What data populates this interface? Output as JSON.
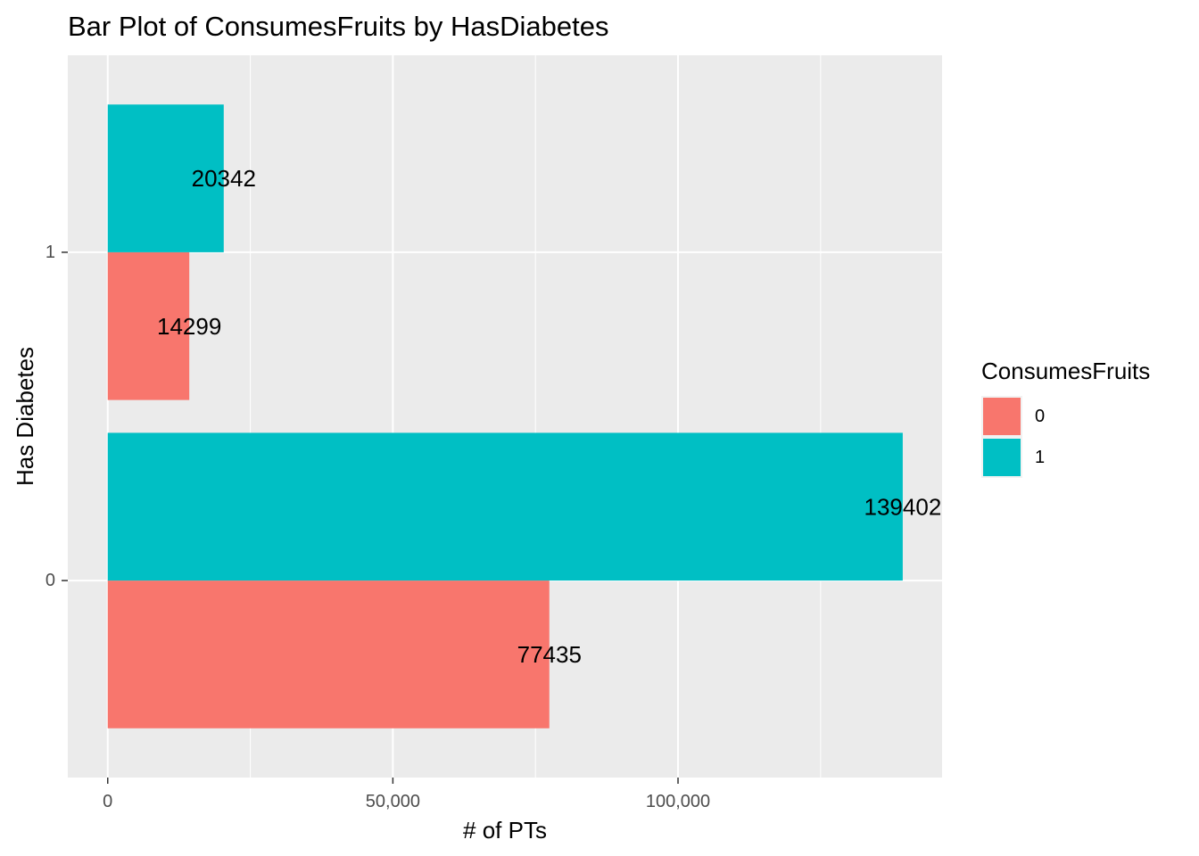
{
  "chart_data": {
    "type": "bar",
    "orientation": "horizontal",
    "title": "Bar Plot of ConsumesFruits by HasDiabetes",
    "xlabel": "# of PTs",
    "ylabel": "Has Diabetes",
    "categories": [
      "0",
      "1"
    ],
    "series": [
      {
        "name": "0",
        "values": [
          77435,
          14299
        ],
        "color": "#F8766D"
      },
      {
        "name": "1",
        "values": [
          139402,
          20342
        ],
        "color": "#00BFC4"
      }
    ],
    "xlim": [
      -7000,
      146300
    ],
    "x_ticks": [
      0,
      50000,
      100000
    ],
    "x_tick_labels": [
      "0",
      "50,000",
      "100,000"
    ],
    "x_minor_ticks": [
      25000,
      75000,
      125000
    ],
    "grid": true,
    "panel_background": "#EBEBEB",
    "legend": {
      "title": "ConsumesFruits",
      "position": "right",
      "items": [
        "0",
        "1"
      ]
    }
  }
}
